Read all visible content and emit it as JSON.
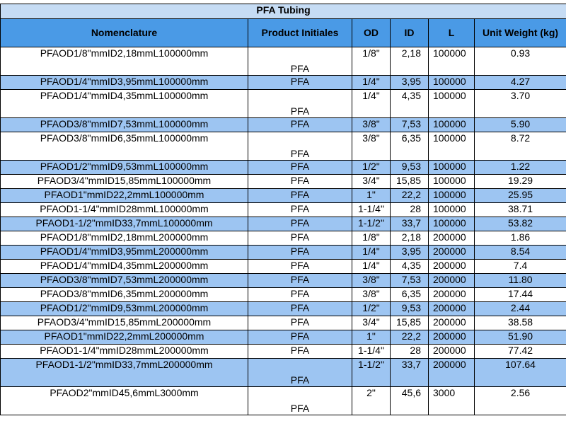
{
  "table": {
    "title": "PFA Tubing",
    "header": [
      "Nomenclature",
      "Product Initiales",
      "OD",
      "ID",
      "L",
      "Unit Weight (kg)"
    ],
    "rows": [
      [
        "PFAOD1/8\"mmID2,18mmL100000mm",
        "PFA",
        "1/8\"",
        "2,18",
        "100000",
        "0.93"
      ],
      [
        "PFAOD1/4\"mmID3,95mmL100000mm",
        "PFA",
        "1/4\"",
        "3,95",
        "100000",
        "4.27"
      ],
      [
        "PFAOD1/4\"mmID4,35mmL100000mm",
        "PFA",
        "1/4\"",
        "4,35",
        "100000",
        "3.70"
      ],
      [
        "PFAOD3/8\"mmID7,53mmL100000mm",
        "PFA",
        "3/8\"",
        "7,53",
        "100000",
        "5.90"
      ],
      [
        "PFAOD3/8\"mmID6,35mmL100000mm",
        "PFA",
        "3/8\"",
        "6,35",
        "100000",
        "8.72"
      ],
      [
        "PFAOD1/2\"mmID9,53mmL100000mm",
        "PFA",
        "1/2\"",
        "9,53",
        "100000",
        "1.22"
      ],
      [
        "PFAOD3/4\"mmID15,85mmL100000mm",
        "PFA",
        "3/4\"",
        "15,85",
        "100000",
        "19.29"
      ],
      [
        "PFAOD1\"mmID22,2mmL100000mm",
        "PFA",
        "1\"",
        "22,2",
        "100000",
        "25.95"
      ],
      [
        "PFAOD1-1/4\"mmID28mmL100000mm",
        "PFA",
        "1-1/4\"",
        "28",
        "100000",
        "38.71"
      ],
      [
        "PFAOD1-1/2\"mmID33,7mmL100000mm",
        "PFA",
        "1-1/2\"",
        "33,7",
        "100000",
        "53.82"
      ],
      [
        "PFAOD1/8\"mmID2,18mmL200000mm",
        "PFA",
        "1/8\"",
        "2,18",
        "200000",
        "1.86"
      ],
      [
        "PFAOD1/4\"mmID3,95mmL200000mm",
        "PFA",
        "1/4\"",
        "3,95",
        "200000",
        "8.54"
      ],
      [
        "PFAOD1/4\"mmID4,35mmL200000mm",
        "PFA",
        "1/4\"",
        "4,35",
        "200000",
        "7.4"
      ],
      [
        "PFAOD3/8\"mmID7,53mmL200000mm",
        "PFA",
        "3/8\"",
        "7,53",
        "200000",
        "11.80"
      ],
      [
        "PFAOD3/8\"mmID6,35mmL200000mm",
        "PFA",
        "3/8\"",
        "6,35",
        "200000",
        "17.44"
      ],
      [
        "PFAOD1/2\"mmID9,53mmL200000mm",
        "PFA",
        "1/2\"",
        "9,53",
        "200000",
        "2.44"
      ],
      [
        "PFAOD3/4\"mmID15,85mmL200000mm",
        "PFA",
        "3/4\"",
        "15,85",
        "200000",
        "38.58"
      ],
      [
        "PFAOD1\"mmID22,2mmL200000mm",
        "PFA",
        "1\"",
        "22,2",
        "200000",
        "51.90"
      ],
      [
        "PFAOD1-1/4\"mmID28mmL200000mm",
        "PFA",
        "1-1/4\"",
        "28",
        "200000",
        "77.42"
      ],
      [
        "PFAOD1-1/2\"mmID33,7mmL200000mm",
        "PFA",
        "1-1/2\"",
        "33,7",
        "200000",
        "107.64"
      ],
      [
        "PFAOD2\"mmID45,6mmL3000mm",
        "PFA",
        "2\"",
        "45,6",
        "3000",
        "2.56"
      ]
    ]
  }
}
